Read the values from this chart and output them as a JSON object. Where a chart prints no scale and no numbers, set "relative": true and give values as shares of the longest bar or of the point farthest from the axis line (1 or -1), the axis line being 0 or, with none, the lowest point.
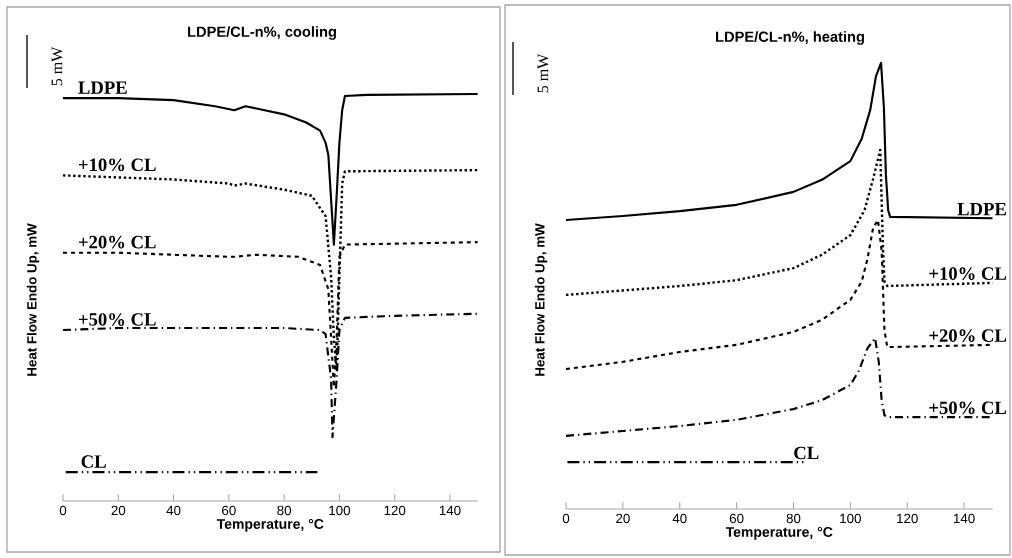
{
  "chart_data": [
    {
      "type": "line",
      "title": "LDPE/CL-n%, cooling",
      "xlabel": "Temperature, °C",
      "ylabel": "Heat Flow Endo Up, mW",
      "relative": true,
      "xlim": [
        0,
        150
      ],
      "xticks": [
        0,
        20,
        40,
        60,
        80,
        100,
        120,
        140
      ],
      "annotations": [
        "5 mW"
      ],
      "series": [
        {
          "name": "LDPE",
          "color": "#000000",
          "line_style": "solid",
          "x": [
            0,
            20,
            40,
            55,
            62,
            66,
            80,
            88,
            93,
            95,
            96,
            97,
            98,
            99,
            100,
            101,
            102,
            110,
            150
          ],
          "values": [
            0.99,
            0.99,
            0.985,
            0.97,
            0.96,
            0.97,
            0.95,
            0.93,
            0.91,
            0.88,
            0.85,
            0.74,
            0.63,
            0.75,
            0.88,
            0.96,
            0.995,
            0.998,
            1
          ]
        },
        {
          "name": "+10% CL",
          "color": "#000000",
          "line_style": "dotted",
          "x": [
            0,
            20,
            40,
            60,
            62,
            66,
            80,
            90,
            95,
            97,
            98,
            99,
            100,
            101,
            102,
            150
          ],
          "values": [
            0.8,
            0.795,
            0.79,
            0.78,
            0.775,
            0.78,
            0.765,
            0.75,
            0.7,
            0.55,
            0.4,
            0.32,
            0.55,
            0.78,
            0.81,
            0.813
          ]
        },
        {
          "name": "+20% CL",
          "color": "#000000",
          "line_style": "dashed",
          "x": [
            0,
            20,
            40,
            60,
            62,
            70,
            85,
            93,
            96,
            97,
            98,
            99,
            100,
            102,
            150
          ],
          "values": [
            0.61,
            0.61,
            0.605,
            0.6,
            0.6,
            0.605,
            0.6,
            0.58,
            0.52,
            0.4,
            0.28,
            0.4,
            0.6,
            0.63,
            0.636
          ]
        },
        {
          "name": "+50% CL",
          "color": "#000000",
          "line_style": "dashdot",
          "x": [
            0,
            20,
            40,
            60,
            80,
            93,
            95,
            97,
            97.5,
            99,
            100,
            102,
            120,
            150
          ],
          "values": [
            0.42,
            0.425,
            0.425,
            0.425,
            0.425,
            0.42,
            0.41,
            0.3,
            0.157,
            0.3,
            0.42,
            0.45,
            0.455,
            0.46
          ]
        },
        {
          "name": "CL",
          "color": "#000000",
          "line_style": "dashdotdot",
          "x": [
            1,
            92
          ],
          "values": [
            0.071,
            0.071
          ]
        }
      ]
    },
    {
      "type": "line",
      "title": "LDPE/CL-n%, heating",
      "xlabel": "Temperature, °C",
      "ylabel": "Heat Flow Endo Up, mW",
      "relative": true,
      "xlim": [
        0,
        150
      ],
      "xticks": [
        0,
        20,
        40,
        60,
        80,
        100,
        120,
        140
      ],
      "annotations": [
        "5 mW"
      ],
      "series": [
        {
          "name": "LDPE",
          "color": "#000000",
          "line_style": "solid",
          "x": [
            0,
            20,
            40,
            60,
            80,
            90,
            100,
            104,
            107,
            109,
            110.8,
            111.8,
            112.5,
            113.3,
            114,
            150
          ],
          "values": [
            0.648,
            0.657,
            0.668,
            0.682,
            0.711,
            0.738,
            0.78,
            0.83,
            0.895,
            0.97,
            1,
            0.9,
            0.75,
            0.67,
            0.655,
            0.652
          ]
        },
        {
          "name": "+10% CL",
          "color": "#000000",
          "line_style": "dotted",
          "x": [
            0,
            20,
            40,
            60,
            80,
            90,
            100,
            105,
            108,
            110.5,
            111.5,
            112,
            113,
            150
          ],
          "values": [
            0.48,
            0.49,
            0.5,
            0.513,
            0.54,
            0.57,
            0.614,
            0.67,
            0.74,
            0.805,
            0.58,
            0.51,
            0.5,
            0.507
          ]
        },
        {
          "name": "+20% CL",
          "color": "#000000",
          "line_style": "dashed",
          "x": [
            0,
            20,
            40,
            60,
            80,
            90,
            100,
            104,
            106,
            108,
            109.7,
            111,
            112,
            113,
            150
          ],
          "values": [
            0.314,
            0.33,
            0.352,
            0.368,
            0.397,
            0.424,
            0.469,
            0.51,
            0.56,
            0.63,
            0.648,
            0.58,
            0.4,
            0.363,
            0.368
          ]
        },
        {
          "name": "+50% CL",
          "color": "#000000",
          "line_style": "dashdot",
          "x": [
            0,
            20,
            40,
            60,
            80,
            90,
            100,
            103,
            106,
            108.7,
            110,
            111,
            112,
            113.5,
            150
          ],
          "values": [
            0.164,
            0.175,
            0.186,
            0.2,
            0.224,
            0.244,
            0.278,
            0.31,
            0.36,
            0.383,
            0.33,
            0.244,
            0.21,
            0.206,
            0.206
          ]
        },
        {
          "name": "CL",
          "color": "#000000",
          "line_style": "dashdotdot",
          "x": [
            0.5,
            84
          ],
          "values": [
            0.105,
            0.105
          ]
        }
      ]
    }
  ]
}
